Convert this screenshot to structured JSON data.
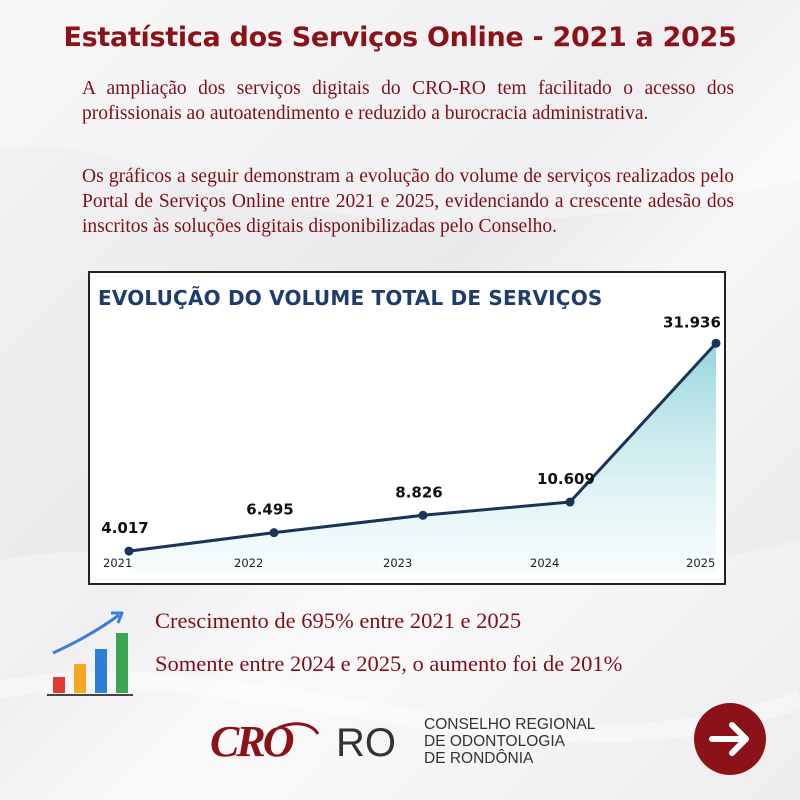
{
  "page": {
    "title": "Estatística dos Serviços Online - 2021 a 2025",
    "paragraphs": [
      "A ampliação dos serviços digitais do CRO-RO tem facilitado o acesso dos profissionais ao autoatendimento e reduzido a burocracia administrativa.",
      "Os gráficos a seguir demonstram a evolução do volume de serviços realizados pelo Portal de Serviços Online entre 2021 e 2025, evidenciando a crescente adesão dos inscritos às soluções digitais disponibilizadas pelo Conselho."
    ],
    "highlights": [
      "Crescimento de 695% entre 2021 e 2025",
      "Somente entre 2024 e 2025, o aumento foi de 201%"
    ],
    "growth_icon": "bar-chart-growth-icon",
    "logo": {
      "mark": "CRO",
      "suffix": "RO",
      "lines": [
        "CONSELHO REGIONAL",
        "DE ODONTOLOGIA",
        "DE RONDÔNIA"
      ]
    },
    "next_icon": "arrow-right-icon"
  },
  "colors": {
    "brand": "#8b1219",
    "text": "#7d1017",
    "chart_title": "#1f3d6b",
    "line": "#1a3457",
    "area": "#8fd3da"
  },
  "chart_data": {
    "type": "area",
    "title": "EVOLUÇÃO DO VOLUME TOTAL DE SERVIÇOS",
    "categories": [
      "2021",
      "2022",
      "2023",
      "2024",
      "2025"
    ],
    "series": [
      {
        "values": [
          4017,
          6495,
          8826,
          10609,
          31936
        ],
        "labels": [
          "4.017",
          "6.495",
          "8.826",
          "10.609",
          "31.936"
        ]
      }
    ],
    "xlabel": "",
    "ylabel": "",
    "grid": false,
    "legend": "none"
  }
}
